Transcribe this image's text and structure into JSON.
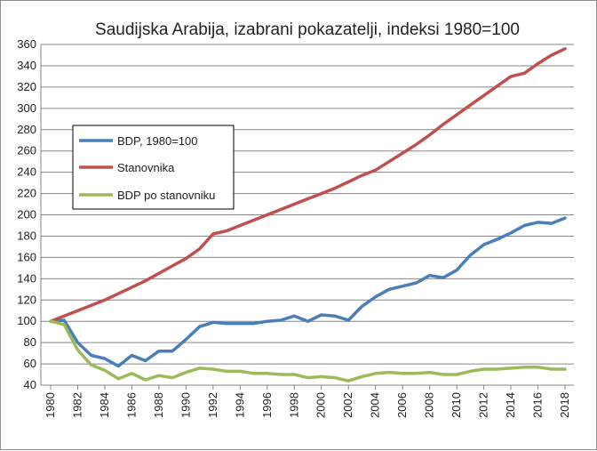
{
  "chart_data": {
    "type": "line",
    "title": "Saudijska Arabija, izabrani pokazatelji, indeksi 1980=100",
    "xlabel": "",
    "ylabel": "",
    "ylim": [
      40,
      360
    ],
    "ytick_step": 20,
    "x": [
      1980,
      1981,
      1982,
      1983,
      1984,
      1985,
      1986,
      1987,
      1988,
      1989,
      1990,
      1991,
      1992,
      1993,
      1994,
      1995,
      1996,
      1997,
      1998,
      1999,
      2000,
      2001,
      2002,
      2003,
      2004,
      2005,
      2006,
      2007,
      2008,
      2009,
      2010,
      2011,
      2012,
      2013,
      2014,
      2015,
      2016,
      2017,
      2018
    ],
    "x_tick_labels": [
      "1980",
      "1982",
      "1984",
      "1986",
      "1988",
      "1990",
      "1992",
      "1994",
      "1996",
      "1998",
      "2000",
      "2002",
      "2004",
      "2006",
      "2008",
      "2010",
      "2012",
      "2014",
      "2016",
      "2018"
    ],
    "grid": true,
    "legend_position": "upper-left",
    "series": [
      {
        "name": "BDP, 1980=100",
        "color": "#4a7ebb",
        "values": [
          100,
          101,
          80,
          68,
          65,
          58,
          68,
          63,
          72,
          72,
          83,
          95,
          99,
          98,
          98,
          98,
          100,
          101,
          105,
          100,
          106,
          105,
          101,
          114,
          123,
          130,
          133,
          136,
          143,
          141,
          148,
          162,
          172,
          177,
          183,
          190,
          193,
          192,
          197
        ]
      },
      {
        "name": "Stanovnika",
        "color": "#c0504d",
        "values": [
          100,
          105,
          110,
          115,
          120,
          126,
          132,
          138,
          145,
          152,
          159,
          168,
          182,
          185,
          190,
          195,
          200,
          205,
          210,
          215,
          220,
          225,
          231,
          237,
          242,
          250,
          258,
          266,
          275,
          285,
          294,
          303,
          312,
          321,
          330,
          333,
          342,
          350,
          356
        ]
      },
      {
        "name": "BDP po stanovniku",
        "color": "#9bbb59",
        "values": [
          100,
          97,
          73,
          59,
          54,
          46,
          51,
          45,
          49,
          47,
          52,
          56,
          55,
          53,
          53,
          51,
          51,
          50,
          50,
          47,
          48,
          47,
          44,
          48,
          51,
          52,
          51,
          51,
          52,
          50,
          50,
          53,
          55,
          55,
          56,
          57,
          57,
          55,
          55
        ]
      }
    ]
  }
}
